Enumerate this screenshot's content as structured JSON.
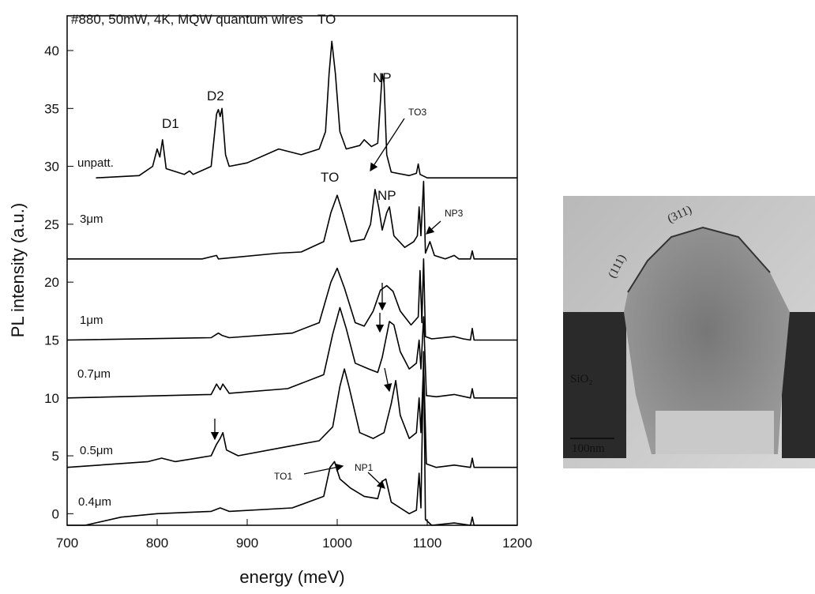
{
  "chart_data": {
    "type": "line",
    "title": "#880, 50mW, 4K, MQW quantum wires",
    "xlabel": "energy (meV)",
    "ylabel": "PL intensity (a.u.)",
    "xlim": [
      700,
      1200
    ],
    "ylim": [
      -1,
      43
    ],
    "xticks": [
      700,
      800,
      900,
      1000,
      1100,
      1200
    ],
    "yticks": [
      0,
      5,
      10,
      15,
      20,
      25,
      30,
      35,
      40
    ],
    "grid": false,
    "series": [
      {
        "name": "unpatt.",
        "color": "#000000",
        "x": [
          732,
          780,
          795,
          800,
          803,
          806,
          810,
          830,
          836,
          840,
          860,
          866,
          868,
          870,
          872,
          876,
          880,
          900,
          935,
          960,
          980,
          987,
          991,
          994,
          998,
          1003,
          1010,
          1025,
          1030,
          1038,
          1045,
          1050,
          1052,
          1055,
          1060,
          1080,
          1088,
          1090,
          1092,
          1100,
          1200
        ],
        "values": [
          29,
          29.2,
          30,
          31.5,
          30.8,
          32.3,
          29.8,
          29.3,
          29.6,
          29.3,
          30,
          34.5,
          34.9,
          34.3,
          35,
          31,
          30,
          30.3,
          31.5,
          31,
          31.5,
          33,
          38,
          40.8,
          38,
          33,
          31.5,
          31.8,
          32.3,
          31.7,
          32,
          38,
          37.2,
          31,
          29.5,
          29.2,
          29.4,
          30.2,
          29.3,
          29,
          29
        ]
      },
      {
        "name": "3μm",
        "color": "#000000",
        "x": [
          700,
          850,
          866,
          868,
          935,
          960,
          985,
          993,
          1000,
          1006,
          1015,
          1030,
          1037,
          1042,
          1046,
          1050,
          1055,
          1058,
          1063,
          1075,
          1085,
          1089,
          1091,
          1093,
          1096,
          1098,
          1103,
          1108,
          1120,
          1130,
          1135,
          1148,
          1150,
          1152,
          1200
        ],
        "values": [
          22,
          22,
          22.3,
          22,
          22.5,
          22.6,
          23.5,
          26,
          27.5,
          26,
          23.5,
          23.7,
          25,
          28,
          26.5,
          24.5,
          26,
          26.5,
          24,
          23,
          23.5,
          24,
          26.5,
          24,
          28.7,
          22.5,
          23.5,
          22.3,
          22,
          22.3,
          22,
          22,
          22.7,
          22,
          22
        ]
      },
      {
        "name": "1μm",
        "color": "#000000",
        "x": [
          700,
          860,
          868,
          872,
          880,
          950,
          980,
          993,
          1000,
          1008,
          1020,
          1030,
          1040,
          1048,
          1055,
          1062,
          1070,
          1082,
          1090,
          1092,
          1094,
          1096,
          1098,
          1105,
          1130,
          1140,
          1148,
          1150,
          1152,
          1200
        ],
        "values": [
          15,
          15.2,
          15.6,
          15.4,
          15.2,
          15.6,
          16.5,
          20,
          21.2,
          19.5,
          16.5,
          16.2,
          17.5,
          19.3,
          19.7,
          19.2,
          17.5,
          16.3,
          17,
          21,
          16.5,
          22,
          15.3,
          15.1,
          15.3,
          15.1,
          15,
          16,
          15,
          15
        ]
      },
      {
        "name": "0.7μm",
        "color": "#000000",
        "x": [
          700,
          860,
          866,
          870,
          873,
          880,
          945,
          985,
          995,
          1003,
          1010,
          1020,
          1035,
          1045,
          1050,
          1058,
          1063,
          1070,
          1080,
          1088,
          1091,
          1093,
          1096,
          1099,
          1110,
          1130,
          1148,
          1150,
          1152,
          1200
        ],
        "values": [
          10,
          10.3,
          11.2,
          10.7,
          11.2,
          10.4,
          10.8,
          12,
          15.5,
          17.8,
          16,
          13,
          12.5,
          12.2,
          13.5,
          16.6,
          16.3,
          14,
          12.5,
          13,
          15,
          12.5,
          17,
          10.2,
          10.1,
          10.3,
          10,
          10.8,
          10,
          10
        ]
      },
      {
        "name": "0.5μm",
        "color": "#000000",
        "x": [
          700,
          790,
          805,
          820,
          860,
          866,
          870,
          873,
          877,
          890,
          945,
          980,
          995,
          1003,
          1008,
          1013,
          1025,
          1040,
          1052,
          1060,
          1065,
          1070,
          1080,
          1088,
          1091,
          1093,
          1096,
          1099,
          1110,
          1130,
          1148,
          1150,
          1152,
          1200
        ],
        "values": [
          4,
          4.5,
          4.8,
          4.5,
          5,
          6,
          6.5,
          7,
          5.5,
          5,
          5.8,
          6.3,
          7.5,
          11,
          12.5,
          11,
          7,
          6.5,
          7,
          9.5,
          11.5,
          8.5,
          6.5,
          7,
          10,
          7,
          13,
          4.3,
          4,
          4.2,
          4,
          4.8,
          4,
          4
        ]
      },
      {
        "name": "0.4μm",
        "color": "#000000",
        "x": [
          700,
          720,
          760,
          800,
          860,
          870,
          880,
          950,
          985,
          992,
          997,
          1003,
          1015,
          1030,
          1045,
          1050,
          1054,
          1060,
          1080,
          1088,
          1091,
          1093,
          1096,
          1098,
          1105,
          1130,
          1148,
          1150,
          1152,
          1200
        ],
        "values": [
          -1,
          -1,
          -0.3,
          0,
          0.2,
          0.5,
          0.2,
          0.5,
          1.5,
          4,
          4.5,
          3,
          2.2,
          1.5,
          1.3,
          2.8,
          3,
          1,
          0,
          0.3,
          3.5,
          0.5,
          14,
          -0.5,
          -1,
          -0.8,
          -1,
          -0.3,
          -1,
          -1
        ]
      }
    ],
    "annotations": [
      "D1",
      "D2",
      "TO",
      "NP",
      "TO3",
      "TO",
      "NP",
      "NP3",
      "TO1",
      "NP1"
    ]
  },
  "image": {
    "labels": [
      "(311)",
      "(111)",
      "SiO₂",
      "100nm"
    ]
  }
}
